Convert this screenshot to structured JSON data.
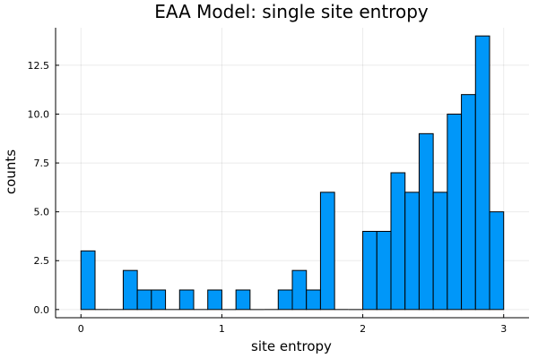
{
  "chart_data": {
    "type": "bar",
    "title": "EAA Model: single site entropy",
    "xlabel": "site entropy",
    "ylabel": "counts",
    "xlim": [
      -0.18,
      3.18
    ],
    "ylim": [
      -0.42,
      14.42
    ],
    "xticks": [
      0,
      1,
      2,
      3
    ],
    "xtick_labels": [
      "0",
      "1",
      "2",
      "3"
    ],
    "yticks": [
      0,
      2.5,
      5,
      7.5,
      10,
      12.5
    ],
    "ytick_labels": [
      "0.0",
      "2.5",
      "5.0",
      "7.5",
      "10.0",
      "12.5"
    ],
    "grid": true,
    "legend": "none",
    "bin_width": 0.1,
    "bin_edges_start": 0,
    "values": [
      3,
      0,
      0,
      2,
      1,
      1,
      0,
      1,
      0,
      1,
      0,
      1,
      0,
      0,
      1,
      2,
      1,
      6,
      0,
      0,
      4,
      4,
      7,
      6,
      9,
      6,
      10,
      11,
      14,
      5
    ],
    "bar_color": "#0097f9"
  }
}
